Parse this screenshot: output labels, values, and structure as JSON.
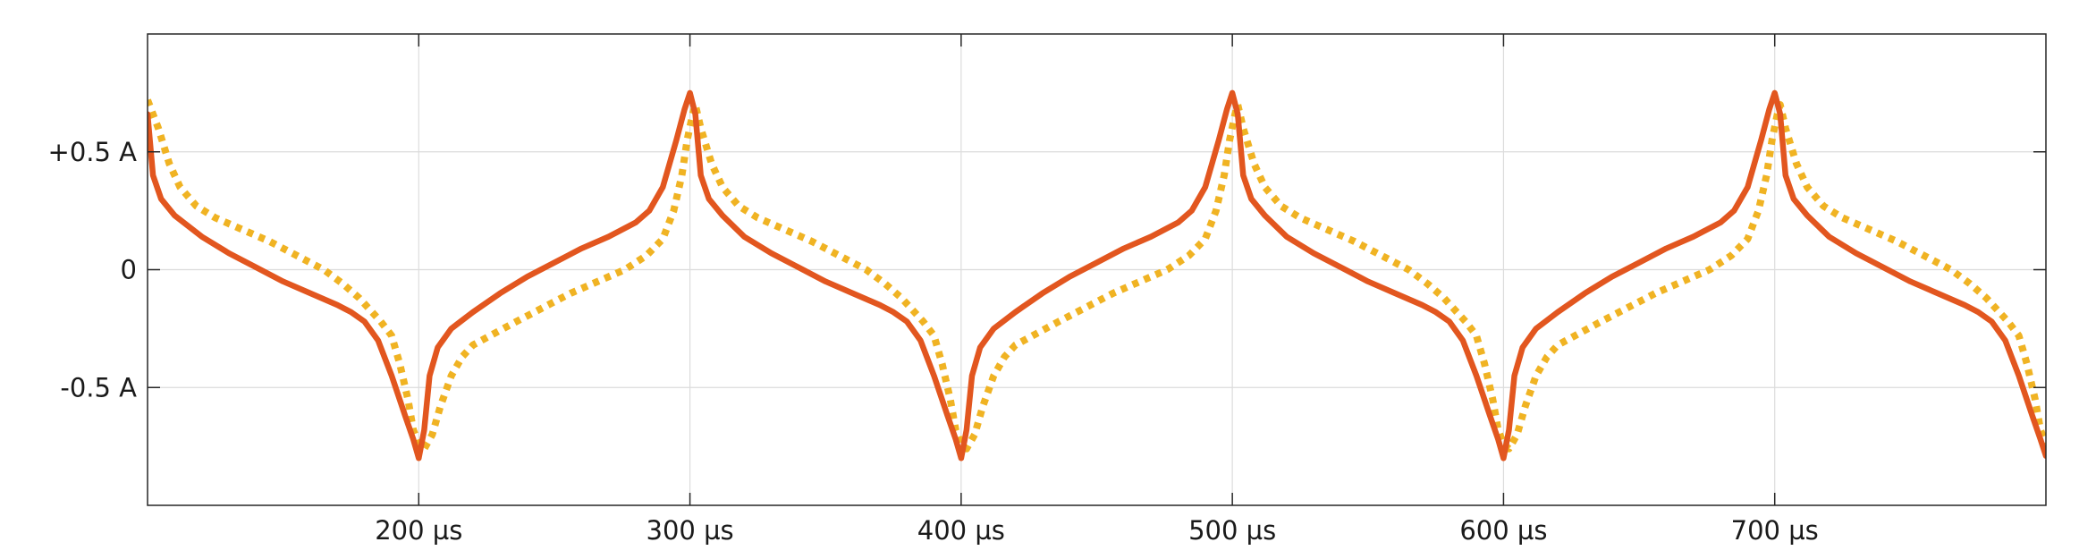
{
  "chart_data": {
    "type": "line",
    "title": "",
    "xlabel": "",
    "ylabel": "",
    "xlim": [
      100,
      800
    ],
    "ylim": [
      -1.0,
      1.0
    ],
    "grid": true,
    "legend": "none",
    "x_ticks": [
      {
        "value": 200,
        "label": "200 µs"
      },
      {
        "value": 300,
        "label": "300 µs"
      },
      {
        "value": 400,
        "label": "400 µs"
      },
      {
        "value": 500,
        "label": "500 µs"
      },
      {
        "value": 600,
        "label": "600 µs"
      },
      {
        "value": 700,
        "label": "700 µs"
      }
    ],
    "y_ticks": [
      {
        "value": 0.5,
        "label": "+0.5 A"
      },
      {
        "value": 0,
        "label": "0"
      },
      {
        "value": -0.5,
        "label": "-0.5 A"
      }
    ],
    "series": [
      {
        "style": "solid",
        "color": "#e2561f",
        "points": [
          [
            100,
            0.66
          ],
          [
            102,
            0.4
          ],
          [
            105,
            0.3
          ],
          [
            110,
            0.23
          ],
          [
            120,
            0.14
          ],
          [
            130,
            0.07
          ],
          [
            140,
            0.01
          ],
          [
            150,
            -0.05
          ],
          [
            160,
            -0.1
          ],
          [
            170,
            -0.15
          ],
          [
            175,
            -0.18
          ],
          [
            180,
            -0.22
          ],
          [
            185,
            -0.3
          ],
          [
            190,
            -0.45
          ],
          [
            195,
            -0.62
          ],
          [
            198,
            -0.72
          ],
          [
            200,
            -0.8
          ],
          [
            202,
            -0.68
          ],
          [
            204,
            -0.45
          ],
          [
            207,
            -0.33
          ],
          [
            212,
            -0.25
          ],
          [
            220,
            -0.18
          ],
          [
            230,
            -0.1
          ],
          [
            240,
            -0.03
          ],
          [
            250,
            0.03
          ],
          [
            260,
            0.09
          ],
          [
            270,
            0.14
          ],
          [
            280,
            0.2
          ],
          [
            285,
            0.25
          ],
          [
            290,
            0.35
          ],
          [
            295,
            0.55
          ],
          [
            298,
            0.68
          ],
          [
            300,
            0.75
          ],
          [
            302,
            0.66
          ],
          [
            304,
            0.4
          ],
          [
            307,
            0.3
          ],
          [
            312,
            0.23
          ],
          [
            320,
            0.14
          ],
          [
            330,
            0.07
          ],
          [
            340,
            0.01
          ],
          [
            350,
            -0.05
          ],
          [
            360,
            -0.1
          ],
          [
            370,
            -0.15
          ],
          [
            375,
            -0.18
          ],
          [
            380,
            -0.22
          ],
          [
            385,
            -0.3
          ],
          [
            390,
            -0.45
          ],
          [
            395,
            -0.62
          ],
          [
            398,
            -0.72
          ],
          [
            400,
            -0.8
          ],
          [
            402,
            -0.68
          ],
          [
            404,
            -0.45
          ],
          [
            407,
            -0.33
          ],
          [
            412,
            -0.25
          ],
          [
            420,
            -0.18
          ],
          [
            430,
            -0.1
          ],
          [
            440,
            -0.03
          ],
          [
            450,
            0.03
          ],
          [
            460,
            0.09
          ],
          [
            470,
            0.14
          ],
          [
            480,
            0.2
          ],
          [
            485,
            0.25
          ],
          [
            490,
            0.35
          ],
          [
            495,
            0.55
          ],
          [
            498,
            0.68
          ],
          [
            500,
            0.75
          ],
          [
            502,
            0.66
          ],
          [
            504,
            0.4
          ],
          [
            507,
            0.3
          ],
          [
            512,
            0.23
          ],
          [
            520,
            0.14
          ],
          [
            530,
            0.07
          ],
          [
            540,
            0.01
          ],
          [
            550,
            -0.05
          ],
          [
            560,
            -0.1
          ],
          [
            570,
            -0.15
          ],
          [
            575,
            -0.18
          ],
          [
            580,
            -0.22
          ],
          [
            585,
            -0.3
          ],
          [
            590,
            -0.45
          ],
          [
            595,
            -0.62
          ],
          [
            598,
            -0.72
          ],
          [
            600,
            -0.8
          ],
          [
            602,
            -0.68
          ],
          [
            604,
            -0.45
          ],
          [
            607,
            -0.33
          ],
          [
            612,
            -0.25
          ],
          [
            620,
            -0.18
          ],
          [
            630,
            -0.1
          ],
          [
            640,
            -0.03
          ],
          [
            650,
            0.03
          ],
          [
            660,
            0.09
          ],
          [
            670,
            0.14
          ],
          [
            680,
            0.2
          ],
          [
            685,
            0.25
          ],
          [
            690,
            0.35
          ],
          [
            695,
            0.55
          ],
          [
            698,
            0.68
          ],
          [
            700,
            0.75
          ],
          [
            702,
            0.66
          ],
          [
            704,
            0.4
          ],
          [
            707,
            0.3
          ],
          [
            712,
            0.23
          ],
          [
            720,
            0.14
          ],
          [
            730,
            0.07
          ],
          [
            740,
            0.01
          ],
          [
            750,
            -0.05
          ],
          [
            760,
            -0.1
          ],
          [
            770,
            -0.15
          ],
          [
            775,
            -0.18
          ],
          [
            780,
            -0.22
          ],
          [
            785,
            -0.3
          ],
          [
            790,
            -0.45
          ],
          [
            795,
            -0.62
          ],
          [
            798,
            -0.72
          ],
          [
            800,
            -0.79
          ]
        ]
      },
      {
        "style": "dotted",
        "color": "#f0b323",
        "points": [
          [
            100,
            0.72
          ],
          [
            104,
            0.6
          ],
          [
            108,
            0.45
          ],
          [
            112,
            0.35
          ],
          [
            118,
            0.27
          ],
          [
            125,
            0.22
          ],
          [
            135,
            0.17
          ],
          [
            145,
            0.12
          ],
          [
            155,
            0.06
          ],
          [
            165,
            0.0
          ],
          [
            172,
            -0.06
          ],
          [
            178,
            -0.12
          ],
          [
            182,
            -0.17
          ],
          [
            186,
            -0.22
          ],
          [
            190,
            -0.28
          ],
          [
            193,
            -0.4
          ],
          [
            196,
            -0.55
          ],
          [
            198,
            -0.68
          ],
          [
            200,
            -0.74
          ],
          [
            202,
            -0.76
          ],
          [
            205,
            -0.7
          ],
          [
            208,
            -0.58
          ],
          [
            212,
            -0.45
          ],
          [
            216,
            -0.37
          ],
          [
            220,
            -0.32
          ],
          [
            228,
            -0.27
          ],
          [
            236,
            -0.22
          ],
          [
            246,
            -0.16
          ],
          [
            256,
            -0.1
          ],
          [
            266,
            -0.05
          ],
          [
            276,
            0.0
          ],
          [
            284,
            0.06
          ],
          [
            290,
            0.13
          ],
          [
            294,
            0.25
          ],
          [
            297,
            0.4
          ],
          [
            299,
            0.55
          ],
          [
            301,
            0.66
          ],
          [
            302,
            0.7
          ],
          [
            304,
            0.6
          ],
          [
            308,
            0.45
          ],
          [
            312,
            0.35
          ],
          [
            318,
            0.27
          ],
          [
            325,
            0.22
          ],
          [
            335,
            0.17
          ],
          [
            345,
            0.12
          ],
          [
            355,
            0.06
          ],
          [
            365,
            0.0
          ],
          [
            372,
            -0.06
          ],
          [
            378,
            -0.12
          ],
          [
            382,
            -0.17
          ],
          [
            386,
            -0.22
          ],
          [
            390,
            -0.28
          ],
          [
            393,
            -0.4
          ],
          [
            396,
            -0.55
          ],
          [
            398,
            -0.68
          ],
          [
            400,
            -0.74
          ],
          [
            402,
            -0.76
          ],
          [
            405,
            -0.7
          ],
          [
            408,
            -0.58
          ],
          [
            412,
            -0.45
          ],
          [
            416,
            -0.37
          ],
          [
            420,
            -0.32
          ],
          [
            428,
            -0.27
          ],
          [
            436,
            -0.22
          ],
          [
            446,
            -0.16
          ],
          [
            456,
            -0.1
          ],
          [
            466,
            -0.05
          ],
          [
            476,
            0.0
          ],
          [
            484,
            0.06
          ],
          [
            490,
            0.13
          ],
          [
            494,
            0.25
          ],
          [
            497,
            0.4
          ],
          [
            499,
            0.55
          ],
          [
            501,
            0.66
          ],
          [
            502,
            0.7
          ],
          [
            504,
            0.6
          ],
          [
            508,
            0.45
          ],
          [
            512,
            0.35
          ],
          [
            518,
            0.27
          ],
          [
            525,
            0.22
          ],
          [
            535,
            0.17
          ],
          [
            545,
            0.12
          ],
          [
            555,
            0.06
          ],
          [
            565,
            0.0
          ],
          [
            572,
            -0.06
          ],
          [
            578,
            -0.12
          ],
          [
            582,
            -0.17
          ],
          [
            586,
            -0.22
          ],
          [
            590,
            -0.28
          ],
          [
            593,
            -0.4
          ],
          [
            596,
            -0.55
          ],
          [
            598,
            -0.68
          ],
          [
            600,
            -0.74
          ],
          [
            602,
            -0.76
          ],
          [
            605,
            -0.7
          ],
          [
            608,
            -0.58
          ],
          [
            612,
            -0.45
          ],
          [
            616,
            -0.37
          ],
          [
            620,
            -0.32
          ],
          [
            628,
            -0.27
          ],
          [
            636,
            -0.22
          ],
          [
            646,
            -0.16
          ],
          [
            656,
            -0.1
          ],
          [
            666,
            -0.05
          ],
          [
            676,
            0.0
          ],
          [
            684,
            0.06
          ],
          [
            690,
            0.13
          ],
          [
            694,
            0.25
          ],
          [
            697,
            0.4
          ],
          [
            699,
            0.55
          ],
          [
            701,
            0.66
          ],
          [
            702,
            0.7
          ],
          [
            704,
            0.6
          ],
          [
            708,
            0.45
          ],
          [
            712,
            0.35
          ],
          [
            718,
            0.27
          ],
          [
            725,
            0.22
          ],
          [
            735,
            0.17
          ],
          [
            745,
            0.12
          ],
          [
            755,
            0.06
          ],
          [
            765,
            0.0
          ],
          [
            772,
            -0.06
          ],
          [
            778,
            -0.12
          ],
          [
            782,
            -0.17
          ],
          [
            786,
            -0.22
          ],
          [
            790,
            -0.28
          ],
          [
            793,
            -0.4
          ],
          [
            796,
            -0.55
          ],
          [
            798,
            -0.68
          ],
          [
            800,
            -0.74
          ]
        ]
      }
    ]
  }
}
